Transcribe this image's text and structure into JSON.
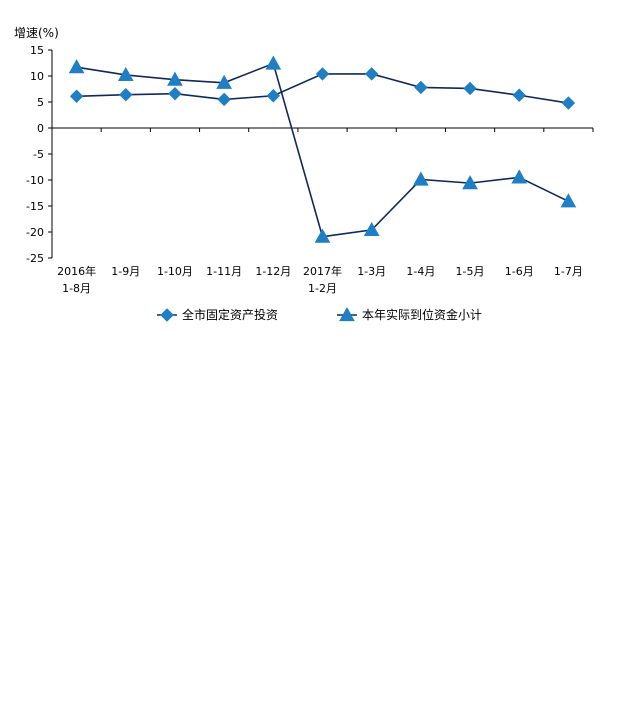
{
  "chart_data": {
    "type": "line",
    "title": "",
    "ylabel": "增速(%)",
    "xlabel": "",
    "ylim": [
      -25,
      15
    ],
    "yticks": [
      15,
      10,
      5,
      0,
      -5,
      -10,
      -15,
      -20,
      -25
    ],
    "grid": false,
    "legend_position": "bottom",
    "categories": [
      [
        "2016年",
        "1-8月"
      ],
      [
        "1-9月"
      ],
      [
        "1-10月"
      ],
      [
        "1-11月"
      ],
      [
        "1-12月"
      ],
      [
        "2017年",
        "1-2月"
      ],
      [
        "1-3月"
      ],
      [
        "1-4月"
      ],
      [
        "1-5月"
      ],
      [
        "1-6月"
      ],
      [
        "1-7月"
      ]
    ],
    "series": [
      {
        "name": "全市固定资产投资",
        "marker": "diamond",
        "color": "#1f7fc4",
        "line_color": "#0f2a5a",
        "values": [
          6.1,
          6.4,
          6.6,
          5.5,
          6.2,
          10.4,
          10.4,
          7.8,
          7.6,
          6.3,
          4.8
        ]
      },
      {
        "name": "本年实际到位资金小计",
        "marker": "triangle",
        "color": "#1f7fc4",
        "line_color": "#0f2a5a",
        "values": [
          11.7,
          10.2,
          9.3,
          8.7,
          12.4,
          -20.9,
          -19.6,
          -9.9,
          -10.6,
          -9.5,
          -14.1
        ]
      }
    ]
  }
}
